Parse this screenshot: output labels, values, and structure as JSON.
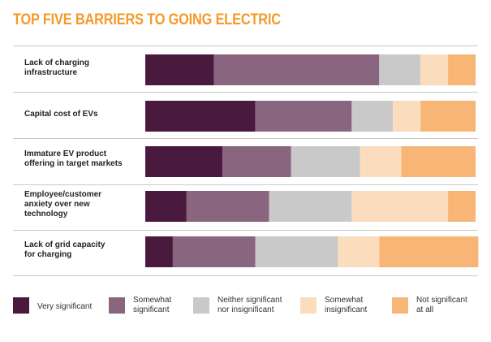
{
  "title": "TOP FIVE BARRIERS TO GOING ELECTRIC",
  "chart_data": {
    "type": "bar",
    "orientation": "horizontal",
    "stacked": true,
    "categories": [
      "Lack of charging infrastructure",
      "Capital cost of EVs",
      "Immature EV product offering in target markets",
      "Employee/customer anxiety over new technology",
      "Lack of grid capacity for charging"
    ],
    "series": [
      {
        "name": "Very significant",
        "color": "#4a1a3e",
        "values": [
          25,
          40,
          28,
          15,
          10
        ]
      },
      {
        "name": "Somewhat significant",
        "color": "#8a6580",
        "values": [
          60,
          35,
          25,
          30,
          30
        ]
      },
      {
        "name": "Neither significant nor insignificant",
        "color": "#c9c9c9",
        "values": [
          15,
          15,
          25,
          30,
          30
        ]
      },
      {
        "name": "Somewhat insignificant",
        "color": "#fbdcbd",
        "values": [
          10,
          10,
          15,
          35,
          15
        ]
      },
      {
        "name": "Not significant at all",
        "color": "#f7b576",
        "values": [
          10,
          20,
          27,
          10,
          36
        ]
      }
    ],
    "xlim": [
      0,
      120
    ],
    "legend": "bottom"
  },
  "legend_labels": [
    "Very significant",
    "Somewhat\nsignificant",
    "Neither significant\nnor insignificant",
    "Somewhat\ninsignificant",
    "Not significant\nat all"
  ],
  "row_labels": [
    "Lack of charging\ninfrastructure",
    "Capital cost of EVs",
    "Immature EV product\noffering in target markets",
    "Employee/customer\nanxiety over new\ntechnology",
    "Lack of grid capacity\nfor charging"
  ]
}
